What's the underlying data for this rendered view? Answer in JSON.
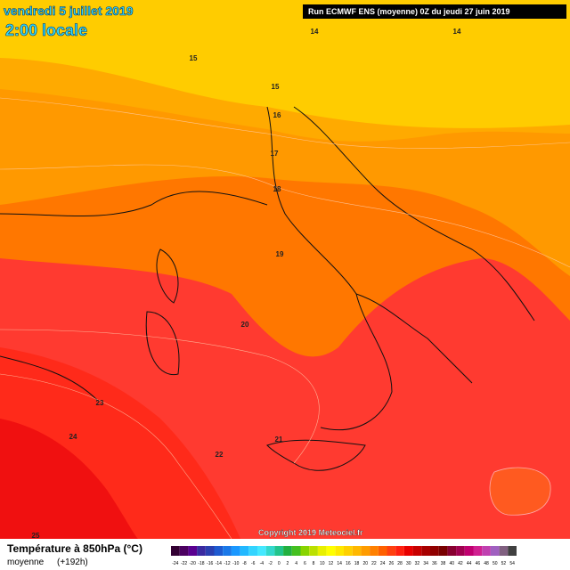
{
  "header": {
    "date": "vendredi 5 juillet 2019",
    "time": "2:00 locale",
    "run": "Run ECMWF ENS (moyenne) 0Z du jeudi 27 juin 2019"
  },
  "contour_labels": [
    "14",
    "14",
    "15",
    "15",
    "16",
    "17",
    "18",
    "19",
    "20",
    "21",
    "22",
    "23",
    "24",
    "25"
  ],
  "copyright": "Copyright 2019 Meteociel.fr",
  "footer": {
    "title": "Température à 850hPa (°C)",
    "subtitle": "moyenne",
    "lead": "(+192h)"
  },
  "colorbar": {
    "ticks": [
      -24,
      -22,
      -20,
      -18,
      -16,
      -14,
      -12,
      -10,
      -8,
      -6,
      -4,
      -2,
      0,
      2,
      4,
      6,
      8,
      10,
      12,
      14,
      16,
      18,
      20,
      22,
      24,
      26,
      28,
      30,
      32,
      34,
      36,
      38,
      40,
      42,
      44,
      46,
      48,
      50,
      52,
      54
    ]
  }
}
